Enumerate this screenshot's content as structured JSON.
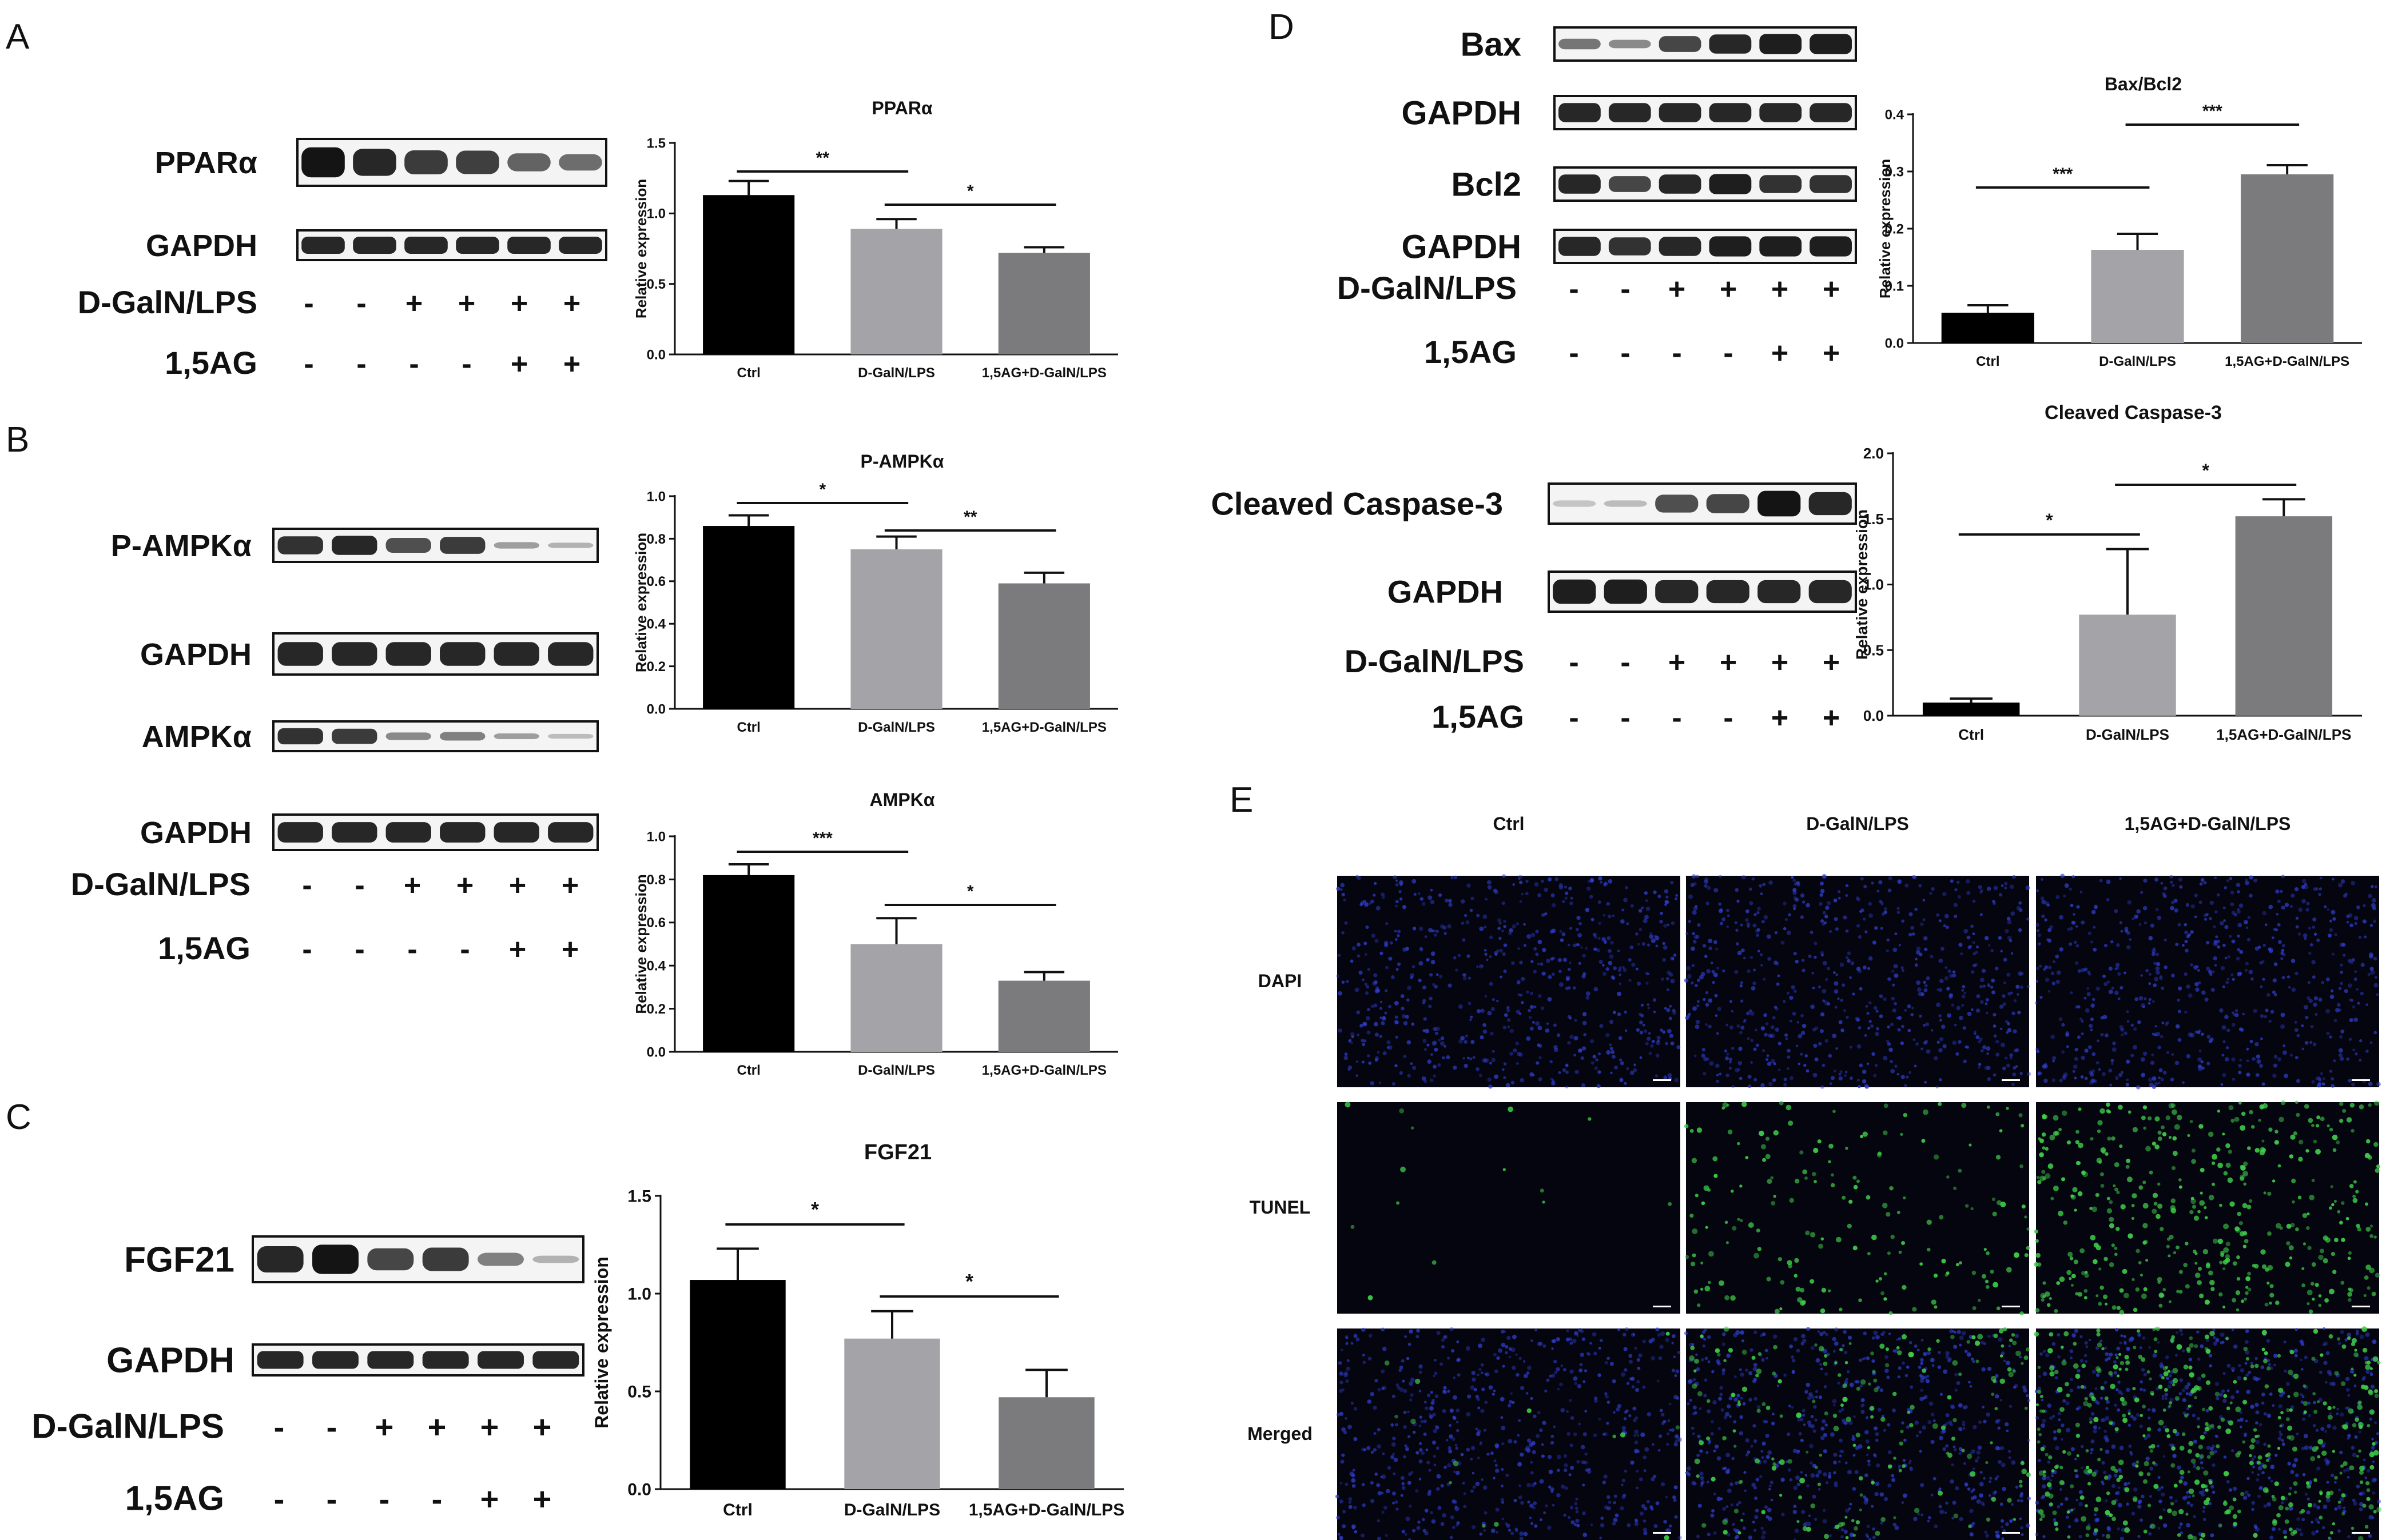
{
  "panels": [
    {
      "letter": "A"
    },
    {
      "letter": "B"
    },
    {
      "letter": "C"
    },
    {
      "letter": "D"
    },
    {
      "letter": "E"
    }
  ],
  "colors": {
    "ctrl": "#000000",
    "dgaln": "#a4a4a8",
    "combo": "#7b7b7d",
    "blot_band": "#141414",
    "blot_bg": "#f4f4f4",
    "dapi": "#2f3fcf",
    "tunel": "#3fd04a",
    "micro_bg": "#050510"
  },
  "blots": [
    {
      "id": "A",
      "bands": [
        {
          "label": "PPARα",
          "intensity": [
            1,
            0.9,
            0.8,
            0.78,
            0.6,
            0.55
          ]
        },
        {
          "label": "GAPDH",
          "intensity": [
            0.9,
            0.9,
            0.9,
            0.9,
            0.9,
            0.9
          ]
        }
      ],
      "treat1": {
        "label": "D-GalN/LPS",
        "signs": [
          "-",
          "-",
          "+",
          "+",
          "+",
          "+"
        ]
      },
      "treat2": {
        "label": "1,5AG",
        "signs": [
          "-",
          "-",
          "-",
          "-",
          "+",
          "+"
        ]
      }
    },
    {
      "id": "B",
      "bands": [
        {
          "label": "P-AMPKα",
          "intensity": [
            0.85,
            0.9,
            0.7,
            0.8,
            0.3,
            0.2
          ]
        },
        {
          "label": "GAPDH",
          "intensity": [
            0.9,
            0.9,
            0.9,
            0.9,
            0.9,
            0.9
          ]
        },
        {
          "label": "AMPKα",
          "intensity": [
            0.85,
            0.8,
            0.4,
            0.45,
            0.3,
            0.15
          ]
        },
        {
          "label": "GAPDH",
          "intensity": [
            0.9,
            0.9,
            0.9,
            0.9,
            0.9,
            0.9
          ]
        }
      ],
      "treat1": {
        "label": "D-GalN/LPS",
        "signs": [
          "-",
          "-",
          "+",
          "+",
          "+",
          "+"
        ]
      },
      "treat2": {
        "label": "1,5AG",
        "signs": [
          "-",
          "-",
          "-",
          "-",
          "+",
          "+"
        ]
      }
    },
    {
      "id": "C",
      "bands": [
        {
          "label": "FGF21",
          "intensity": [
            0.9,
            1,
            0.75,
            0.8,
            0.45,
            0.2
          ]
        },
        {
          "label": "GAPDH",
          "intensity": [
            0.9,
            0.9,
            0.9,
            0.9,
            0.9,
            0.9
          ]
        }
      ],
      "treat1": {
        "label": "D-GalN/LPS",
        "signs": [
          "-",
          "-",
          "+",
          "+",
          "+",
          "+"
        ]
      },
      "treat2": {
        "label": "1,5AG",
        "signs": [
          "-",
          "-",
          "-",
          "-",
          "+",
          "+"
        ]
      }
    },
    {
      "id": "D1",
      "bands": [
        {
          "label": "Bax",
          "intensity": [
            0.5,
            0.4,
            0.75,
            0.9,
            0.95,
            0.95
          ]
        },
        {
          "label": "GAPDH",
          "intensity": [
            0.9,
            0.9,
            0.9,
            0.9,
            0.9,
            0.9
          ]
        },
        {
          "label": "Bcl2",
          "intensity": [
            0.9,
            0.75,
            0.9,
            0.95,
            0.85,
            0.85
          ]
        },
        {
          "label": "GAPDH",
          "intensity": [
            0.9,
            0.85,
            0.9,
            0.95,
            0.95,
            0.95
          ]
        }
      ],
      "treat1": {
        "label": "D-GalN/LPS",
        "signs": [
          "-",
          "-",
          "+",
          "+",
          "+",
          "+"
        ]
      },
      "treat2": {
        "label": "1,5AG",
        "signs": [
          "-",
          "-",
          "-",
          "-",
          "+",
          "+"
        ]
      }
    },
    {
      "id": "D2",
      "bands": [
        {
          "label": "Cleaved Caspase-3",
          "intensity": [
            0.1,
            0.15,
            0.7,
            0.75,
            1,
            0.9
          ]
        },
        {
          "label": "GAPDH",
          "intensity": [
            0.95,
            0.95,
            0.9,
            0.9,
            0.9,
            0.9
          ]
        }
      ],
      "treat1": {
        "label": "D-GalN/LPS",
        "signs": [
          "-",
          "-",
          "+",
          "+",
          "+",
          "+"
        ]
      },
      "treat2": {
        "label": "1,5AG",
        "signs": [
          "-",
          "-",
          "-",
          "-",
          "+",
          "+"
        ]
      }
    }
  ],
  "chart_data": [
    {
      "id": "A",
      "type": "bar",
      "title": "PPARα",
      "ylabel": "Relative expression",
      "categories": [
        "Ctrl",
        "D-GalN/LPS",
        "1,5AG+D-GalN/LPS"
      ],
      "values": [
        1.13,
        0.89,
        0.72
      ],
      "errors": [
        0.1,
        0.07,
        0.04
      ],
      "ylim": [
        0,
        1.5
      ],
      "ticks": [
        "0.0",
        "0.5",
        "1.0",
        "1.5"
      ],
      "sig": [
        {
          "from": 0,
          "to": 1,
          "label": "**"
        },
        {
          "from": 1,
          "to": 2,
          "label": "*"
        }
      ]
    },
    {
      "id": "B1",
      "type": "bar",
      "title": "P-AMPKα",
      "ylabel": "Relative expression",
      "categories": [
        "Ctrl",
        "D-GalN/LPS",
        "1,5AG+D-GalN/LPS"
      ],
      "values": [
        0.86,
        0.75,
        0.59
      ],
      "errors": [
        0.05,
        0.06,
        0.05
      ],
      "ylim": [
        0,
        1.0
      ],
      "ticks": [
        "0.0",
        "0.2",
        "0.4",
        "0.6",
        "0.8",
        "1.0"
      ],
      "sig": [
        {
          "from": 0,
          "to": 1,
          "label": "*"
        },
        {
          "from": 1,
          "to": 2,
          "label": "**"
        }
      ]
    },
    {
      "id": "B2",
      "type": "bar",
      "title": "AMPKα",
      "ylabel": "Relative expression",
      "categories": [
        "Ctrl",
        "D-GalN/LPS",
        "1,5AG+D-GalN/LPS"
      ],
      "values": [
        0.82,
        0.5,
        0.33
      ],
      "errors": [
        0.05,
        0.12,
        0.04
      ],
      "ylim": [
        0,
        1.0
      ],
      "ticks": [
        "0.0",
        "0.2",
        "0.4",
        "0.6",
        "0.8",
        "1.0"
      ],
      "sig": [
        {
          "from": 0,
          "to": 1,
          "label": "***"
        },
        {
          "from": 1,
          "to": 2,
          "label": "*"
        }
      ]
    },
    {
      "id": "C",
      "type": "bar",
      "title": "FGF21",
      "ylabel": "Relative expression",
      "categories": [
        "Ctrl",
        "D-GalN/LPS",
        "1,5AG+D-GalN/LPS"
      ],
      "values": [
        1.07,
        0.77,
        0.47
      ],
      "errors": [
        0.16,
        0.14,
        0.14
      ],
      "ylim": [
        0,
        1.5
      ],
      "ticks": [
        "0.0",
        "0.5",
        "1.0",
        "1.5"
      ],
      "sig": [
        {
          "from": 0,
          "to": 1,
          "label": "*"
        },
        {
          "from": 1,
          "to": 2,
          "label": "*"
        }
      ]
    },
    {
      "id": "D1",
      "type": "bar",
      "title": "Bax/Bcl2",
      "ylabel": "Relative expression",
      "categories": [
        "Ctrl",
        "D-GalN/LPS",
        "1,5AG+D-GalN/LPS"
      ],
      "values": [
        0.053,
        0.163,
        0.295
      ],
      "errors": [
        0.013,
        0.028,
        0.016
      ],
      "ylim": [
        0,
        0.4
      ],
      "ticks": [
        "0.0",
        "0.1",
        "0.2",
        "0.3",
        "0.4"
      ],
      "sig": [
        {
          "from": 0,
          "to": 1,
          "label": "***"
        },
        {
          "from": 1,
          "to": 2,
          "label": "***"
        }
      ]
    },
    {
      "id": "D2",
      "type": "bar",
      "title": "Cleaved Caspase-3",
      "ylabel": "Relative expression",
      "categories": [
        "Ctrl",
        "D-GalN/LPS",
        "1,5AG+D-GalN/LPS"
      ],
      "values": [
        0.1,
        0.77,
        1.52
      ],
      "errors": [
        0.03,
        0.5,
        0.13
      ],
      "ylim": [
        0,
        2.0
      ],
      "ticks": [
        "0.0",
        "0.5",
        "1.0",
        "1.5",
        "2.0"
      ],
      "sig": [
        {
          "from": 0,
          "to": 1,
          "label": "*"
        },
        {
          "from": 1,
          "to": 2,
          "label": "*"
        }
      ]
    }
  ],
  "tunel": {
    "columns": [
      "Ctrl",
      "D-GalN/LPS",
      "1,5AG+D-GalN/LPS"
    ],
    "rows": [
      "DAPI",
      "TUNEL",
      "Merged"
    ],
    "apoptotic_density": [
      0.02,
      0.35,
      0.85
    ]
  }
}
